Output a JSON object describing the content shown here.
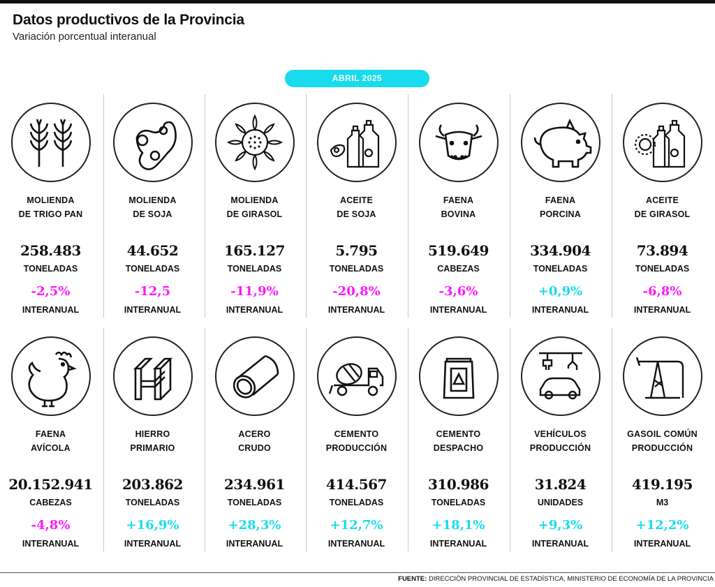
{
  "header": {
    "title": "Datos productivos de la Provincia",
    "subtitle": "Variación porcentual interanual",
    "period": "ABRIL 2025"
  },
  "colors": {
    "negative": "#ff17ff",
    "positive": "#18dced",
    "badge": "#18dced"
  },
  "rows": [
    [
      {
        "icon": "wheat-icon",
        "label1": "MOLIENDA",
        "label2": "DE TRIGO PAN",
        "value": "258.483",
        "unit": "TONELADAS",
        "change": "-2,5%",
        "trend": "neg",
        "interanual": "INTERANUAL"
      },
      {
        "icon": "soy-icon",
        "label1": "MOLIENDA",
        "label2": "DE SOJA",
        "value": "44.652",
        "unit": "TONELADAS",
        "change": "-12,5",
        "trend": "neg",
        "interanual": "INTERANUAL"
      },
      {
        "icon": "sunflower-icon",
        "label1": "MOLIENDA",
        "label2": "DE GIRASOL",
        "value": "165.127",
        "unit": "TONELADAS",
        "change": "-11,9%",
        "trend": "neg",
        "interanual": "INTERANUAL"
      },
      {
        "icon": "soy-oil-icon",
        "label1": "ACEITE",
        "label2": "DE SOJA",
        "value": "5.795",
        "unit": "TONELADAS",
        "change": "-20,8%",
        "trend": "neg",
        "interanual": "INTERANUAL"
      },
      {
        "icon": "cow-icon",
        "label1": "FAENA",
        "label2": "BOVINA",
        "value": "519.649",
        "unit": "CABEZAS",
        "change": "-3,6%",
        "trend": "neg",
        "interanual": "INTERANUAL"
      },
      {
        "icon": "pig-icon",
        "label1": "FAENA",
        "label2": "PORCINA",
        "value": "334.904",
        "unit": "TONELADAS",
        "change": "+0,9%",
        "trend": "pos",
        "interanual": "INTERANUAL"
      },
      {
        "icon": "sunflower-oil-icon",
        "label1": "ACEITE",
        "label2": "DE GIRASOL",
        "value": "73.894",
        "unit": "TONELADAS",
        "change": "-6,8%",
        "trend": "neg",
        "interanual": "INTERANUAL"
      }
    ],
    [
      {
        "icon": "rooster-icon",
        "label1": "FAENA",
        "label2": "AVÍCOLA",
        "value": "20.152.941",
        "unit": "CABEZAS",
        "change": "-4,8%",
        "trend": "neg",
        "interanual": "INTERANUAL"
      },
      {
        "icon": "iron-beam-icon",
        "label1": "HIERRO",
        "label2": "PRIMARIO",
        "value": "203.862",
        "unit": "TONELADAS",
        "change": "+16,9%",
        "trend": "pos",
        "interanual": "INTERANUAL"
      },
      {
        "icon": "steel-pipe-icon",
        "label1": "ACERO",
        "label2": "CRUDO",
        "value": "234.961",
        "unit": "TONELADAS",
        "change": "+28,3%",
        "trend": "pos",
        "interanual": "INTERANUAL"
      },
      {
        "icon": "cement-truck-icon",
        "label1": "CEMENTO",
        "label2": "PRODUCCIÓN",
        "value": "414.567",
        "unit": "TONELADAS",
        "change": "+12,7%",
        "trend": "pos",
        "interanual": "INTERANUAL"
      },
      {
        "icon": "cement-bag-icon",
        "label1": "CEMENTO",
        "label2": "DESPACHO",
        "value": "310.986",
        "unit": "TONELADAS",
        "change": "+18,1%",
        "trend": "pos",
        "interanual": "INTERANUAL"
      },
      {
        "icon": "car-assembly-icon",
        "label1": "VEHÍCULOS",
        "label2": "PRODUCCIÓN",
        "value": "31.824",
        "unit": "UNIDADES",
        "change": "+9,3%",
        "trend": "pos",
        "interanual": "INTERANUAL"
      },
      {
        "icon": "oil-pump-icon",
        "label1": "GASOIL COMÚN",
        "label2": "PRODUCCIÓN",
        "value": "419.195",
        "unit": "M3",
        "change": "+12,2%",
        "trend": "pos",
        "interanual": "INTERANUAL"
      }
    ]
  ],
  "footer": {
    "source_label": "FUENTE:",
    "source_text": " DIRECCIÓN PROVINCIAL DE ESTADÍSTICA, MINISTERIO DE ECONOMÍA DE LA PROVINCIA"
  }
}
